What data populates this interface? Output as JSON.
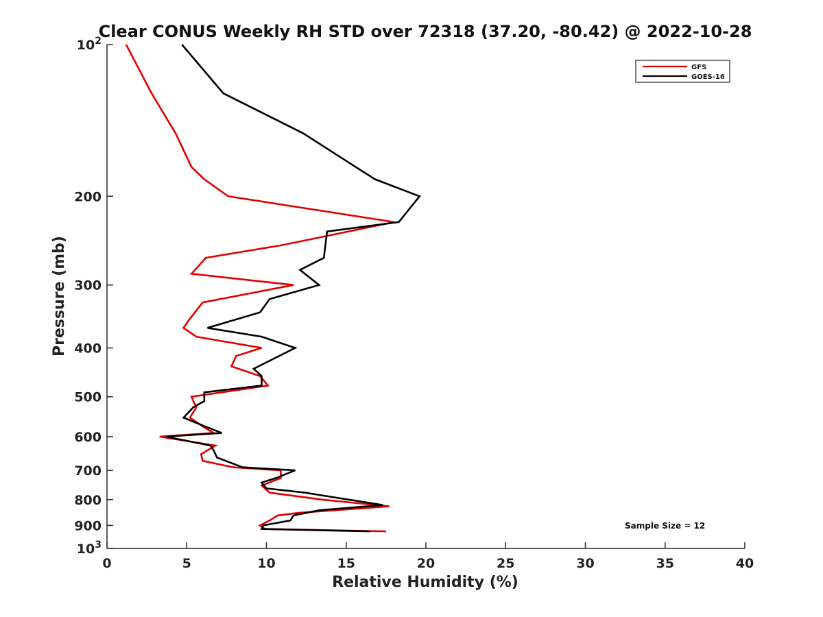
{
  "chart_data": {
    "type": "line",
    "title": "Clear CONUS Weekly RH STD over 72318 (37.20, -80.42) @ 2022-10-28",
    "xlabel": "Relative Humidity (%)",
    "ylabel": "Pressure (mb)",
    "xlim": [
      0,
      40
    ],
    "ylim": [
      100,
      1000
    ],
    "y_scale": "log",
    "y_reversed": true,
    "x_ticks": [
      "0",
      "5",
      "10",
      "15",
      "20",
      "25",
      "30",
      "35",
      "40"
    ],
    "y_ticks": [
      {
        "value": 100,
        "base": "10",
        "exp": "2"
      },
      {
        "value": 200,
        "label": "200"
      },
      {
        "value": 300,
        "label": "300"
      },
      {
        "value": 400,
        "label": "400"
      },
      {
        "value": 500,
        "label": "500"
      },
      {
        "value": 600,
        "label": "600"
      },
      {
        "value": 700,
        "label": "700"
      },
      {
        "value": 800,
        "label": "800"
      },
      {
        "value": 900,
        "label": "900"
      },
      {
        "value": 1000,
        "base": "10",
        "exp": "3"
      }
    ],
    "grid": false,
    "legend_position": "top-right",
    "annotation": "Sample Size = 12",
    "series": [
      {
        "name": "GFS",
        "color": "#e00000",
        "points": [
          {
            "x": 1.2,
            "y": 100
          },
          {
            "x": 2.8,
            "y": 125
          },
          {
            "x": 4.3,
            "y": 150
          },
          {
            "x": 5.3,
            "y": 175
          },
          {
            "x": 6.1,
            "y": 185
          },
          {
            "x": 7.6,
            "y": 200
          },
          {
            "x": 18.0,
            "y": 225
          },
          {
            "x": 11.0,
            "y": 250
          },
          {
            "x": 6.2,
            "y": 265
          },
          {
            "x": 5.3,
            "y": 285
          },
          {
            "x": 11.7,
            "y": 300
          },
          {
            "x": 6.0,
            "y": 325
          },
          {
            "x": 5.2,
            "y": 350
          },
          {
            "x": 4.8,
            "y": 365
          },
          {
            "x": 5.6,
            "y": 380
          },
          {
            "x": 9.7,
            "y": 400
          },
          {
            "x": 8.1,
            "y": 415
          },
          {
            "x": 7.8,
            "y": 435
          },
          {
            "x": 9.6,
            "y": 455
          },
          {
            "x": 10.1,
            "y": 475
          },
          {
            "x": 5.3,
            "y": 500
          },
          {
            "x": 5.6,
            "y": 525
          },
          {
            "x": 5.2,
            "y": 550
          },
          {
            "x": 6.1,
            "y": 575
          },
          {
            "x": 6.7,
            "y": 590
          },
          {
            "x": 3.3,
            "y": 600
          },
          {
            "x": 6.8,
            "y": 625
          },
          {
            "x": 5.9,
            "y": 650
          },
          {
            "x": 6.0,
            "y": 670
          },
          {
            "x": 7.9,
            "y": 690
          },
          {
            "x": 10.9,
            "y": 700
          },
          {
            "x": 10.9,
            "y": 725
          },
          {
            "x": 9.7,
            "y": 750
          },
          {
            "x": 10.2,
            "y": 775
          },
          {
            "x": 13.5,
            "y": 800
          },
          {
            "x": 17.7,
            "y": 825
          },
          {
            "x": 12.0,
            "y": 850
          },
          {
            "x": 10.7,
            "y": 860
          },
          {
            "x": 10.2,
            "y": 880
          },
          {
            "x": 9.6,
            "y": 900
          },
          {
            "x": 9.9,
            "y": 915
          },
          {
            "x": 17.5,
            "y": 925
          }
        ]
      },
      {
        "name": "GOES-16",
        "color": "#000000",
        "points": [
          {
            "x": 4.7,
            "y": 100
          },
          {
            "x": 7.3,
            "y": 125
          },
          {
            "x": 12.3,
            "y": 150
          },
          {
            "x": 15.6,
            "y": 175
          },
          {
            "x": 16.8,
            "y": 185
          },
          {
            "x": 19.6,
            "y": 200
          },
          {
            "x": 18.3,
            "y": 225
          },
          {
            "x": 13.8,
            "y": 235
          },
          {
            "x": 13.6,
            "y": 265
          },
          {
            "x": 12.1,
            "y": 280
          },
          {
            "x": 13.3,
            "y": 300
          },
          {
            "x": 10.2,
            "y": 320
          },
          {
            "x": 9.6,
            "y": 340
          },
          {
            "x": 6.3,
            "y": 365
          },
          {
            "x": 9.7,
            "y": 380
          },
          {
            "x": 11.8,
            "y": 400
          },
          {
            "x": 9.2,
            "y": 440
          },
          {
            "x": 9.7,
            "y": 455
          },
          {
            "x": 9.7,
            "y": 475
          },
          {
            "x": 6.1,
            "y": 490
          },
          {
            "x": 6.1,
            "y": 510
          },
          {
            "x": 5.4,
            "y": 525
          },
          {
            "x": 4.8,
            "y": 550
          },
          {
            "x": 6.3,
            "y": 575
          },
          {
            "x": 7.2,
            "y": 590
          },
          {
            "x": 3.7,
            "y": 600
          },
          {
            "x": 6.5,
            "y": 625
          },
          {
            "x": 6.7,
            "y": 640
          },
          {
            "x": 6.9,
            "y": 660
          },
          {
            "x": 8.5,
            "y": 690
          },
          {
            "x": 11.8,
            "y": 700
          },
          {
            "x": 10.6,
            "y": 725
          },
          {
            "x": 9.7,
            "y": 740
          },
          {
            "x": 10.0,
            "y": 760
          },
          {
            "x": 12.4,
            "y": 775
          },
          {
            "x": 17.3,
            "y": 820
          },
          {
            "x": 13.3,
            "y": 840
          },
          {
            "x": 11.7,
            "y": 860
          },
          {
            "x": 11.5,
            "y": 880
          },
          {
            "x": 9.8,
            "y": 900
          },
          {
            "x": 9.7,
            "y": 915
          },
          {
            "x": 16.5,
            "y": 925
          }
        ]
      }
    ]
  }
}
